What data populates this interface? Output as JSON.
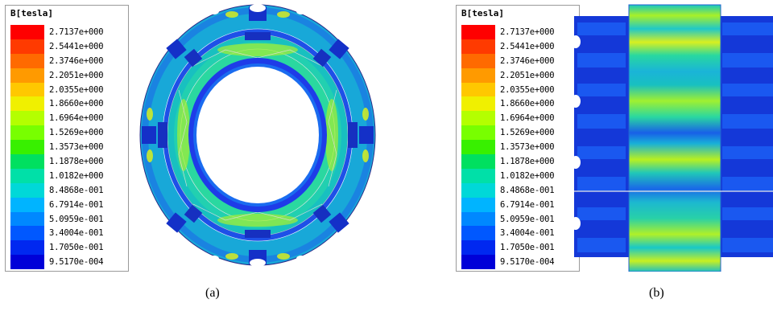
{
  "panels": [
    {
      "legend": {
        "title": "B[tesla]",
        "entries": [
          "2.7137e+000",
          "2.5441e+000",
          "2.3746e+000",
          "2.2051e+000",
          "2.0355e+000",
          "1.8660e+000",
          "1.6964e+000",
          "1.5269e+000",
          "1.3573e+000",
          "1.1878e+000",
          "1.0182e+000",
          "8.4868e-001",
          "6.7914e-001",
          "5.0959e-001",
          "3.4004e-001",
          "1.7050e-001",
          "9.5170e-004"
        ]
      },
      "caption": "(a)"
    },
    {
      "legend": {
        "title": "B[tesla]",
        "entries": [
          "2.7137e+000",
          "2.5441e+000",
          "2.3746e+000",
          "2.2051e+000",
          "2.0355e+000",
          "1.8660e+000",
          "1.6964e+000",
          "1.5269e+000",
          "1.3573e+000",
          "1.1878e+000",
          "1.0182e+000",
          "8.4868e-001",
          "6.7914e-001",
          "5.0959e-001",
          "3.4004e-001",
          "1.7050e-001",
          "9.5170e-004"
        ]
      },
      "caption": "(b)"
    }
  ],
  "colors": {
    "scale": [
      "#ff0000",
      "#ff3a00",
      "#ff6a00",
      "#ff9a00",
      "#ffc800",
      "#f0f000",
      "#b4ff00",
      "#78ff00",
      "#38f000",
      "#00e060",
      "#00e0a8",
      "#00d8d8",
      "#00b4ff",
      "#0088ff",
      "#0058ff",
      "#0028f0",
      "#0000d8"
    ],
    "field_low": "#1438e0",
    "field_mid": "#16c8c0",
    "field_high": "#c8f020"
  }
}
